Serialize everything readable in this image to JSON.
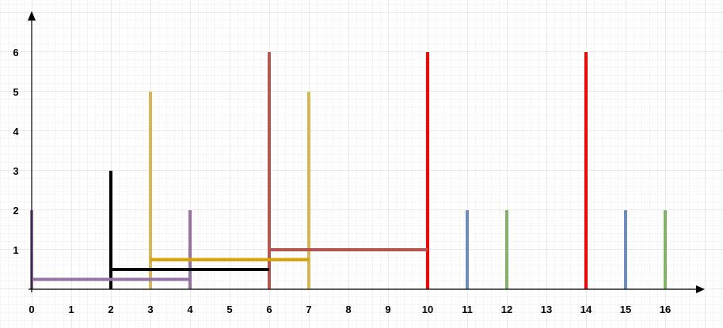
{
  "chart_data": {
    "type": "line",
    "title": "",
    "xlabel": "",
    "ylabel": "",
    "xlim": [
      0,
      17
    ],
    "ylim": [
      0,
      6.8
    ],
    "grid": true,
    "x_ticks": [
      "0",
      "1",
      "2",
      "3",
      "4",
      "5",
      "6",
      "7",
      "8",
      "9",
      "10",
      "11",
      "12",
      "13",
      "14",
      "15",
      "16"
    ],
    "y_ticks": [
      "1",
      "2",
      "3",
      "4",
      "5",
      "6"
    ],
    "vertical_bars": [
      {
        "x": 0,
        "height": 2,
        "color": "#9673a6"
      },
      {
        "x": 4,
        "height": 2,
        "color": "#9673a6"
      },
      {
        "x": 2,
        "height": 3,
        "color": "#000000"
      },
      {
        "x": 6,
        "height": 3,
        "color": "#000000"
      },
      {
        "x": 3,
        "height": 5,
        "color": "#d6b656"
      },
      {
        "x": 7,
        "height": 5,
        "color": "#d6b656"
      },
      {
        "x": 6,
        "height": 6,
        "color": "#b85450"
      },
      {
        "x": 10,
        "height": 6,
        "color": "#b85450"
      },
      {
        "x": 10,
        "height": 6,
        "color": "#ff0000"
      },
      {
        "x": 14,
        "height": 6,
        "color": "#ff0000"
      },
      {
        "x": 11,
        "height": 2,
        "color": "#6c8ebf"
      },
      {
        "x": 15,
        "height": 2,
        "color": "#6c8ebf"
      },
      {
        "x": 12,
        "height": 2,
        "color": "#82b366"
      },
      {
        "x": 16,
        "height": 2,
        "color": "#82b366"
      }
    ],
    "horizontal_bars": [
      {
        "x1": 0,
        "x2": 4,
        "y": 0.25,
        "color": "#9673a6"
      },
      {
        "x1": 2,
        "x2": 6,
        "y": 0.5,
        "color": "#000000"
      },
      {
        "x1": 3,
        "x2": 7,
        "y": 0.75,
        "color": "#d6a000"
      },
      {
        "x1": 6,
        "x2": 10,
        "y": 1.0,
        "color": "#b85450"
      }
    ]
  }
}
